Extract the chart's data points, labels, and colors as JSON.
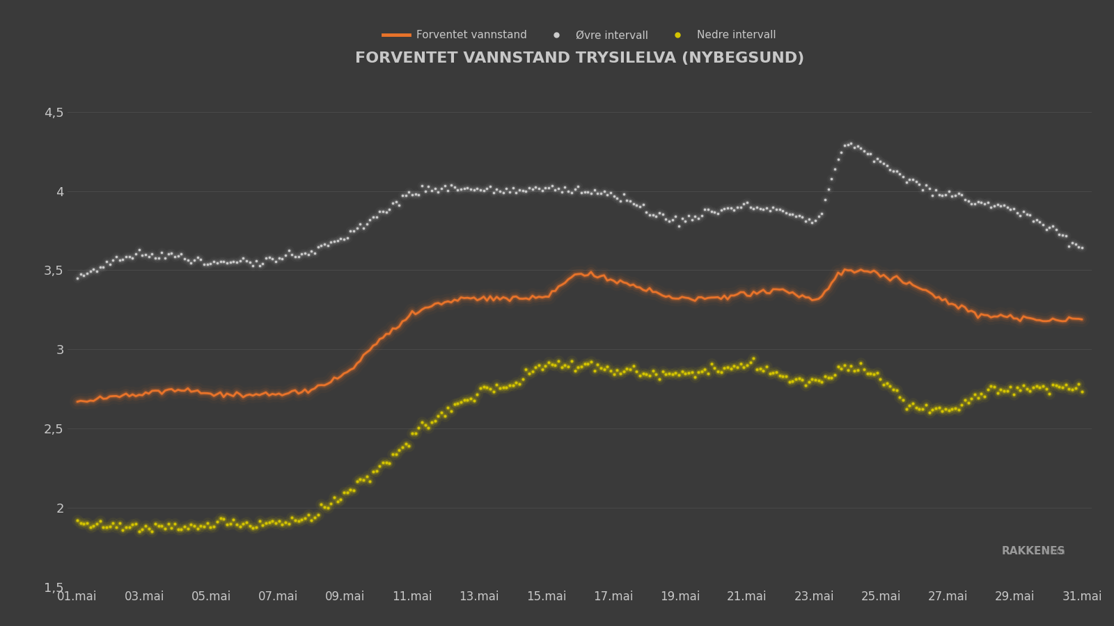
{
  "title": "FORVENTET VANNSTAND TRYSILELVA (NYBEGSUND)",
  "background_color": "#3a3a3a",
  "grid_color": "#555555",
  "text_color": "#c8c8c8",
  "ylim": [
    1.5,
    4.75
  ],
  "yticks": [
    1.5,
    2.0,
    2.5,
    3.0,
    3.5,
    4.0,
    4.5
  ],
  "ytick_labels": [
    "1,5",
    "2",
    "2,5",
    "3",
    "3,5",
    "4",
    "4,5"
  ],
  "xlabel_dates": [
    "01.mai",
    "03.mai",
    "05.mai",
    "07.mai",
    "09.mai",
    "11.mai",
    "13.mai",
    "15.mai",
    "17.mai",
    "19.mai",
    "21.mai",
    "23.mai",
    "25.mai",
    "27.mai",
    "29.mai",
    "31.mai"
  ],
  "legend_labels": [
    "Forventet vannstand",
    "Øvre intervall",
    "Nedre intervall"
  ],
  "orange_color": "#e8732a",
  "upper_color": "#cccccc",
  "lower_color": "#d4c400",
  "watermark_text": "RAKKENES",
  "watermark_suffix": ".com"
}
